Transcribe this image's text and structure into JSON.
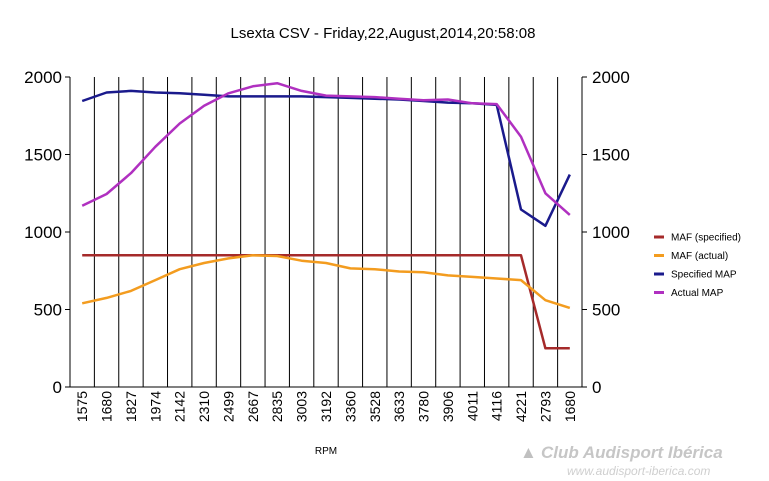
{
  "chart_data": {
    "type": "line",
    "title": "Lsexta CSV - Friday,22,August,2014,20:58:08",
    "xlabel": "RPM",
    "ylabel": "",
    "ylim": [
      0,
      2000
    ],
    "y_ticks": [
      0,
      500,
      1000,
      1500,
      2000
    ],
    "grid": "vertical lines at each category",
    "legend_position": "right",
    "categories": [
      "1575",
      "1680",
      "1827",
      "1974",
      "2142",
      "2310",
      "2499",
      "2667",
      "2835",
      "3003",
      "3192",
      "3360",
      "3528",
      "3633",
      "3780",
      "3906",
      "4011",
      "4116",
      "4221",
      "2793",
      "1680"
    ],
    "series": [
      {
        "name": "MAF (specified)",
        "color": "#a52a2a",
        "values": [
          850,
          850,
          850,
          850,
          850,
          850,
          850,
          850,
          850,
          850,
          850,
          850,
          850,
          850,
          850,
          850,
          850,
          850,
          850,
          250,
          250
        ]
      },
      {
        "name": "MAF (actual)",
        "color": "#f39c1f",
        "values": [
          540,
          575,
          620,
          690,
          760,
          800,
          830,
          850,
          845,
          815,
          800,
          765,
          760,
          745,
          740,
          720,
          710,
          700,
          690,
          560,
          510
        ]
      },
      {
        "name": "Specified MAP",
        "color": "#1a1a8c",
        "values": [
          1845,
          1900,
          1910,
          1900,
          1895,
          1885,
          1875,
          1875,
          1875,
          1875,
          1870,
          1865,
          1860,
          1855,
          1845,
          1835,
          1830,
          1820,
          1145,
          1040,
          1370
        ]
      },
      {
        "name": "Actual MAP",
        "color": "#b030c0",
        "values": [
          1170,
          1245,
          1380,
          1550,
          1700,
          1815,
          1895,
          1940,
          1960,
          1910,
          1880,
          1875,
          1870,
          1860,
          1850,
          1855,
          1830,
          1825,
          1615,
          1250,
          1110
        ]
      }
    ]
  },
  "watermark": {
    "brand": "Club Audisport Ibérica",
    "url": "www.audisport-iberica.com"
  }
}
